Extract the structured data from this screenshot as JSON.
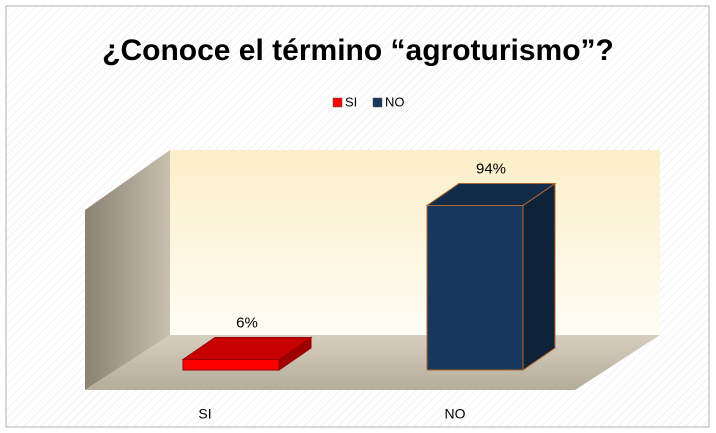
{
  "chart_data": {
    "type": "bar3d",
    "title": "¿Conoce el término “agroturismo”?",
    "categories": [
      "SI",
      "NO"
    ],
    "values": [
      6,
      94
    ],
    "value_labels": [
      "6%",
      "94%"
    ],
    "colors": [
      "#ff0000",
      "#17375e"
    ],
    "legend": "top"
  }
}
